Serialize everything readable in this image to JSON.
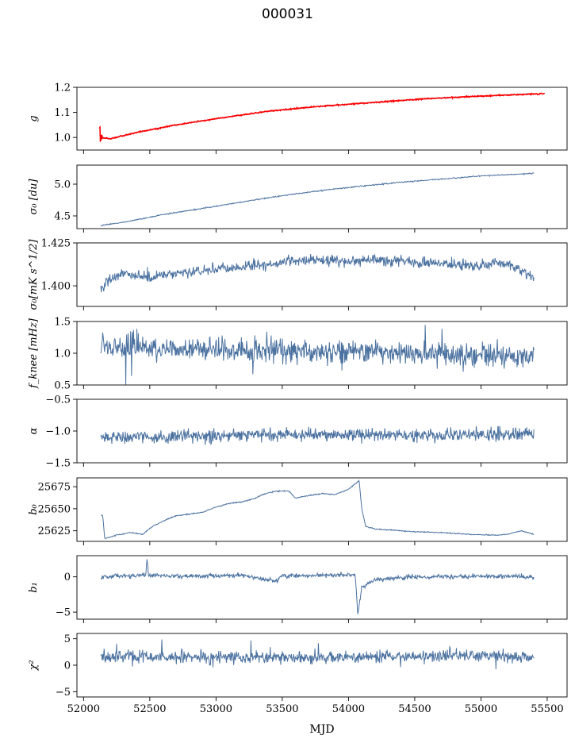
{
  "figure": {
    "title": "000031",
    "xlabel": "MJD"
  },
  "chart_data": {
    "type": "line",
    "shared_x": {
      "label": "MJD",
      "xlim": [
        51950,
        55650
      ],
      "ticks": [
        52000,
        52500,
        53000,
        53500,
        54000,
        54500,
        55000,
        55500
      ],
      "tick_labels": [
        "52000",
        "52500",
        "53000",
        "53500",
        "54000",
        "54500",
        "55000",
        "55500"
      ],
      "data_range": [
        52120,
        55400
      ]
    },
    "line_color": "#4c72a0",
    "fit_color": "#ff0000",
    "grid": false,
    "panels": [
      {
        "id": "g",
        "ylabel": "g",
        "ylim": [
          0.95,
          1.2
        ],
        "yticks": [
          1.0,
          1.1,
          1.2
        ],
        "ytick_labels": [
          "1.0",
          "1.1",
          "1.2"
        ],
        "series": [
          {
            "x": [
              52120,
              52150,
              52200,
              52400,
              52700,
              53000,
              53400,
              53800,
              54200,
              54600,
              55000,
              55400
            ],
            "values": [
              1.01,
              1.0,
              0.995,
              1.02,
              1.05,
              1.075,
              1.105,
              1.125,
              1.14,
              1.155,
              1.165,
              1.175
            ]
          },
          {
            "x": [
              52120,
              52130,
              52150,
              52200,
              52400,
              52700,
              53000,
              53400,
              53800,
              54200,
              54600,
              55000,
              55480
            ],
            "values": [
              1.065,
              1.0,
              0.998,
              0.995,
              1.02,
              1.05,
              1.075,
              1.105,
              1.125,
              1.14,
              1.155,
              1.165,
              1.175
            ]
          }
        ]
      },
      {
        "id": "sigma0-du",
        "ylabel": "σ₀ [du]",
        "ylim": [
          4.3,
          5.3
        ],
        "yticks": [
          4.5,
          5.0
        ],
        "ytick_labels": [
          "4.5",
          "5.0"
        ],
        "series": [
          {
            "x": [
              52130,
              52300,
              52600,
              52900,
              53200,
              53500,
              53800,
              54100,
              54400,
              54700,
              55000,
              55400
            ],
            "values": [
              4.35,
              4.4,
              4.52,
              4.62,
              4.72,
              4.82,
              4.9,
              4.97,
              5.03,
              5.08,
              5.13,
              5.17
            ]
          }
        ]
      },
      {
        "id": "sigma0-mks",
        "ylabel": "σ₀[mK s^1/2]",
        "ylim": [
          1.388,
          1.425
        ],
        "yticks": [
          1.4,
          1.425
        ],
        "ytick_labels": [
          "1.400",
          "1.425"
        ],
        "series": [
          {
            "x": [
              52130,
              52200,
              52300,
              52500,
              52800,
              53100,
              53400,
              53700,
              54000,
              54300,
              54600,
              54900,
              55200,
              55400
            ],
            "values": [
              1.397,
              1.404,
              1.408,
              1.405,
              1.408,
              1.41,
              1.413,
              1.415,
              1.414,
              1.415,
              1.413,
              1.412,
              1.413,
              1.405
            ]
          }
        ]
      },
      {
        "id": "fknee",
        "ylabel": "f_knee [mHz]",
        "ylim": [
          0.5,
          1.5
        ],
        "yticks": [
          0.5,
          1.0,
          1.5
        ],
        "ytick_labels": [
          "0.5",
          "1.0",
          "1.5"
        ],
        "series": [
          {
            "x": [
              52130,
              52500,
              53000,
              53500,
              54000,
              54500,
              55000,
              55400
            ],
            "values": [
              1.12,
              1.08,
              1.05,
              1.03,
              1.02,
              1.0,
              0.98,
              0.95
            ]
          }
        ]
      },
      {
        "id": "alpha",
        "ylabel": "α",
        "ylim": [
          -1.5,
          -0.5
        ],
        "yticks": [
          -1.5,
          -1.0,
          -0.5
        ],
        "ytick_labels": [
          "−1.5",
          "−1.0",
          "−0.5"
        ],
        "series": [
          {
            "x": [
              52130,
              52500,
              53000,
              53500,
              54000,
              54500,
              55000,
              55400
            ],
            "values": [
              -1.1,
              -1.1,
              -1.08,
              -1.05,
              -1.06,
              -1.07,
              -1.06,
              -1.05
            ]
          }
        ]
      },
      {
        "id": "b0",
        "ylabel": "b₀",
        "ylim": [
          25613,
          25685
        ],
        "yticks": [
          25625,
          25650,
          25675
        ],
        "ytick_labels": [
          "25625",
          "25650",
          "25675"
        ],
        "series": [
          {
            "x": [
              52130,
              52145,
              52160,
              52250,
              52350,
              52450,
              52500,
              52600,
              52700,
              52800,
              52900,
              53000,
              53100,
              53200,
              53300,
              53350,
              53450,
              53550,
              53600,
              53700,
              53800,
              53900,
              54000,
              54080,
              54100,
              54130,
              54200,
              54300,
              54500,
              54700,
              54900,
              55100,
              55200,
              55300,
              55400
            ],
            "values": [
              25643,
              25642,
              25616,
              25620,
              25623,
              25621,
              25628,
              25636,
              25642,
              25644,
              25646,
              25652,
              25656,
              25658,
              25662,
              25666,
              25670,
              25670,
              25662,
              25665,
              25667,
              25666,
              25672,
              25682,
              25650,
              25630,
              25627,
              25626,
              25624,
              25623,
              25621,
              25620,
              25621,
              25625,
              25621
            ]
          }
        ]
      },
      {
        "id": "b1",
        "ylabel": "b₁",
        "ylim": [
          -6,
          3
        ],
        "yticks": [
          -5,
          0
        ],
        "ytick_labels": [
          "−5",
          "0"
        ],
        "series": [
          {
            "x": [
              52130,
              52400,
              52470,
              52480,
              52490,
              52800,
              53200,
              53450,
              53500,
              53800,
              54050,
              54060,
              54070,
              54100,
              54200,
              54500,
              55000,
              55400
            ],
            "values": [
              0,
              0.2,
              0.3,
              2.8,
              0.2,
              0.1,
              0.2,
              -0.6,
              0.2,
              0.2,
              0.3,
              -2,
              -5.4,
              -1.5,
              -0.4,
              0,
              0.1,
              0
            ]
          }
        ]
      },
      {
        "id": "chi2",
        "ylabel": "χ²",
        "ylim": [
          -6,
          6
        ],
        "yticks": [
          -5,
          0,
          5
        ],
        "ytick_labels": [
          "−5",
          "0",
          "5"
        ],
        "series": [
          {
            "x": [
              52130,
              52500,
              53000,
              53500,
              54000,
              54500,
              55000,
              55400
            ],
            "values": [
              1.5,
              1.6,
              1.5,
              1.4,
              1.5,
              1.7,
              1.8,
              1.6
            ]
          }
        ]
      }
    ]
  }
}
